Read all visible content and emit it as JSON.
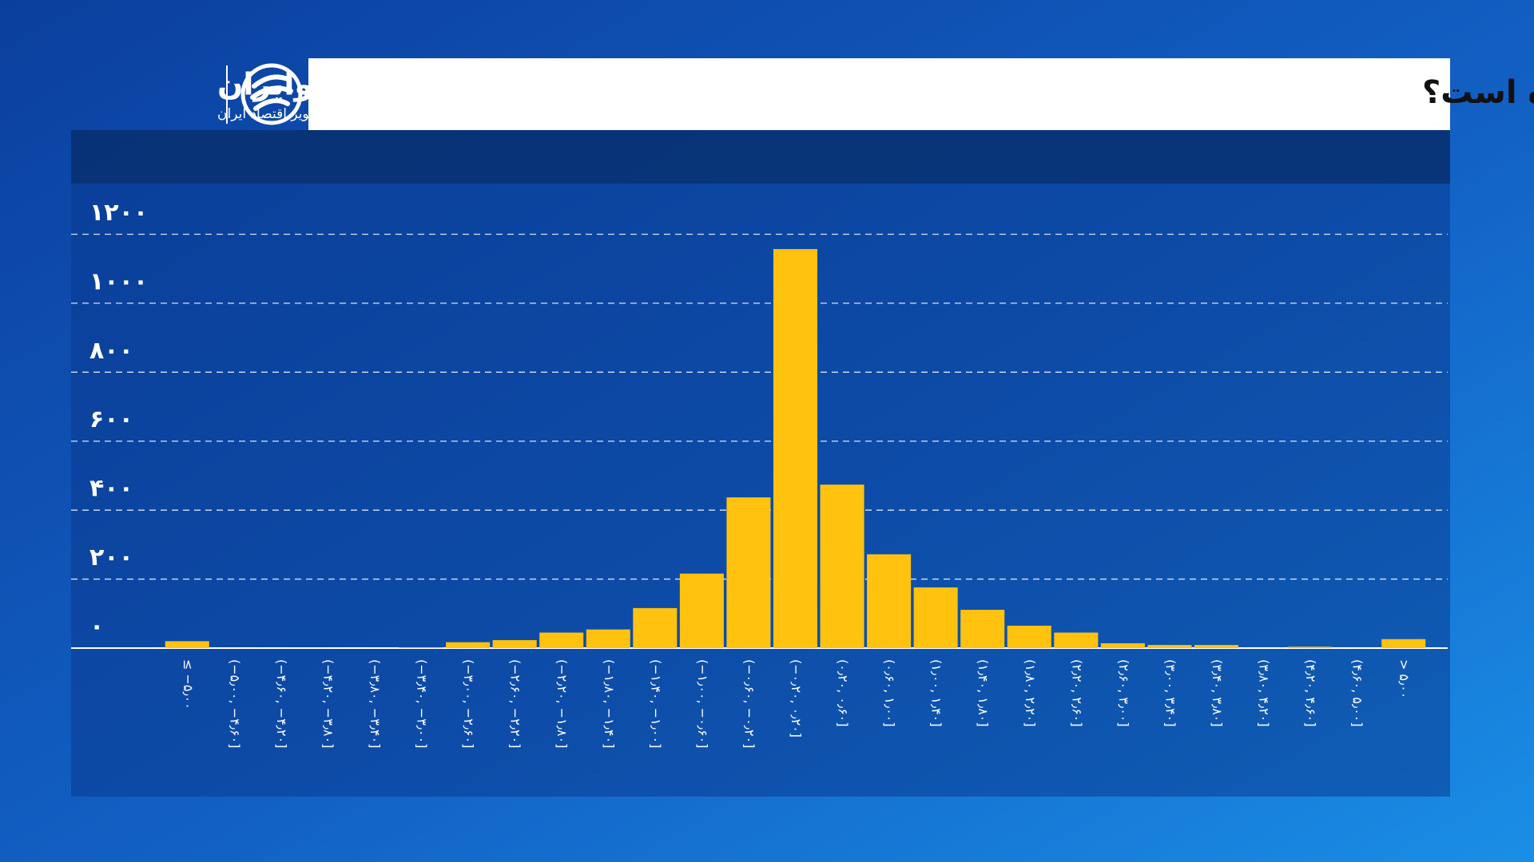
{
  "brand": {
    "name": "اکوایران",
    "tagline": "تصویر اقتصاد ایران"
  },
  "chart_data": {
    "type": "bar",
    "title": "نوسانات روزانه نرخ دلار در یک دهه اخیر بیشتر در چه بازه‌ای بوده است؟",
    "categories": [
      "≤ −۵٫۰۰",
      "(−۵٫۰۰, −۴٫۶۰]",
      "(−۴٫۶۰, −۴٫۲۰]",
      "(−۴٫۲۰, −۳٫۸۰]",
      "(−۳٫۸۰, −۳٫۴۰]",
      "(−۳٫۴۰, −۳٫۰۰]",
      "(−۳٫۰۰, −۲٫۶۰]",
      "(−۲٫۶۰, −۲٫۲۰]",
      "(−۲٫۲۰, −۱٫۸۰]",
      "(−۱٫۸۰, −۱٫۴۰]",
      "(−۱٫۴۰, −۱٫۰۰]",
      "(−۱٫۰۰, −۰٫۶۰]",
      "(−۰٫۶۰, −۰٫۲۰]",
      "(−۰٫۲۰, ۰٫۲۰]",
      "(۰٫۲۰, ۰٫۶۰]",
      "(۰٫۶۰, ۱٫۰۰]",
      "(۱٫۰۰, ۱٫۴۰]",
      "(۱٫۴۰, ۱٫۸۰]",
      "(۱٫۸۰, ۲٫۲۰]",
      "(۲٫۲۰, ۲٫۶۰]",
      "(۲٫۶۰, ۳٫۰۰]",
      "(۳٫۰۰, ۳٫۴۰]",
      "(۳٫۴۰, ۳٫۸۰]",
      "(۳٫۸۰, ۴٫۲۰]",
      "(۴٫۲۰, ۴٫۶۰]",
      "(۴٫۶۰, ۵٫۰۰]",
      "> ۵٫۰۰"
    ],
    "values": [
      20,
      0,
      0,
      0,
      0,
      2,
      17,
      23,
      45,
      54,
      116,
      216,
      437,
      1157,
      474,
      272,
      176,
      111,
      65,
      45,
      14,
      9,
      9,
      0,
      4,
      0,
      26
    ],
    "color": "#ffc20e",
    "ylim": [
      0,
      1340
    ],
    "yticks": [
      {
        "value": 0,
        "label": "۰"
      },
      {
        "value": 200,
        "label": "۲۰۰"
      },
      {
        "value": 400,
        "label": "۴۰۰"
      },
      {
        "value": 600,
        "label": "۶۰۰"
      },
      {
        "value": 800,
        "label": "۸۰۰"
      },
      {
        "value": 1000,
        "label": "۱۰۰۰"
      },
      {
        "value": 1200,
        "label": "۱۲۰۰"
      }
    ],
    "grid": true
  }
}
